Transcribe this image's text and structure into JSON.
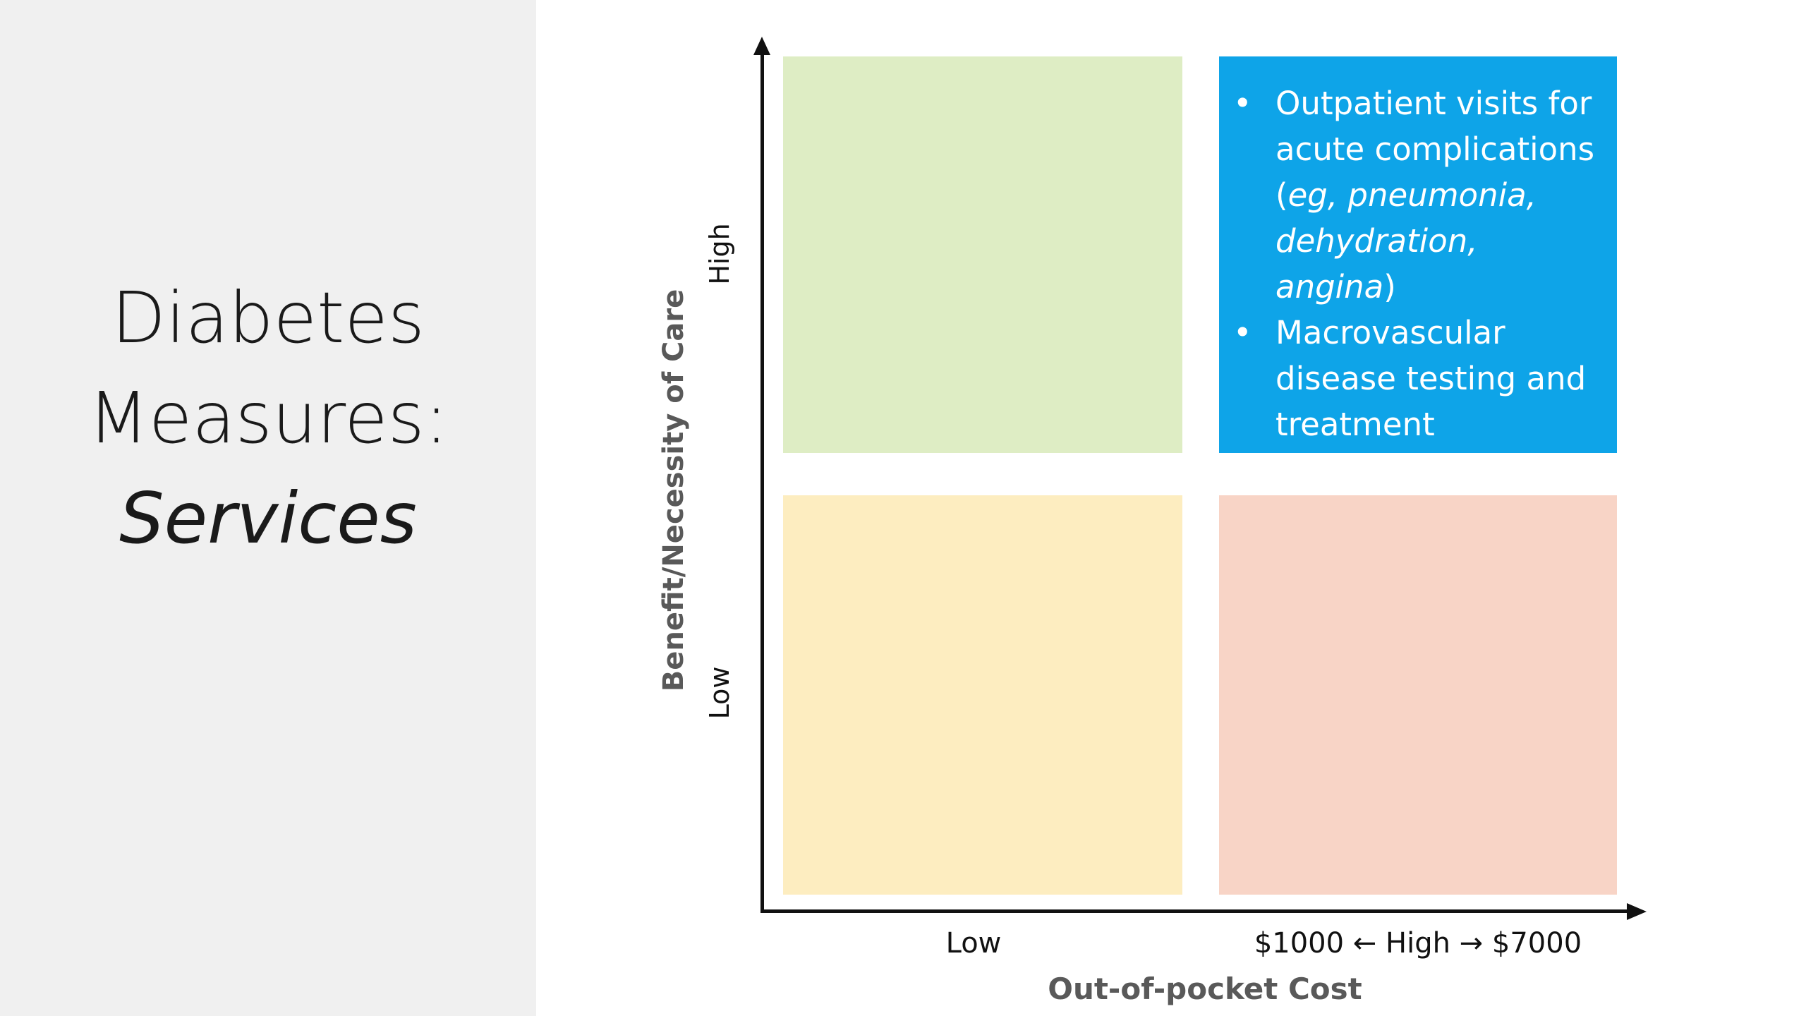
{
  "slide": {
    "title_line1": "Diabetes",
    "title_line2": "Measures:",
    "title_line3": "Services"
  },
  "matrix": {
    "y_axis_title": "Benefit/Necessity of Care",
    "y_tick_high": "High",
    "y_tick_low": "Low",
    "x_axis_title": "Out-of-pocket Cost",
    "x_tick_low": "Low",
    "x_tick_high": "$1000 ← High → $7000",
    "quadrant_colors": {
      "high_benefit_low_cost": "#deedc4",
      "high_benefit_high_cost": "#0ea4e8",
      "low_benefit_low_cost": "#fdedc0",
      "low_benefit_high_cost": "#f8d4c6"
    },
    "high_benefit_high_cost": {
      "bullet": "•",
      "item1_part1": "Outpatient visits for acute complications (",
      "item1_italic": "eg, pneumonia, dehydration, angina",
      "item1_part2": ")",
      "item2": "Macrovascular disease testing and treatment"
    }
  }
}
